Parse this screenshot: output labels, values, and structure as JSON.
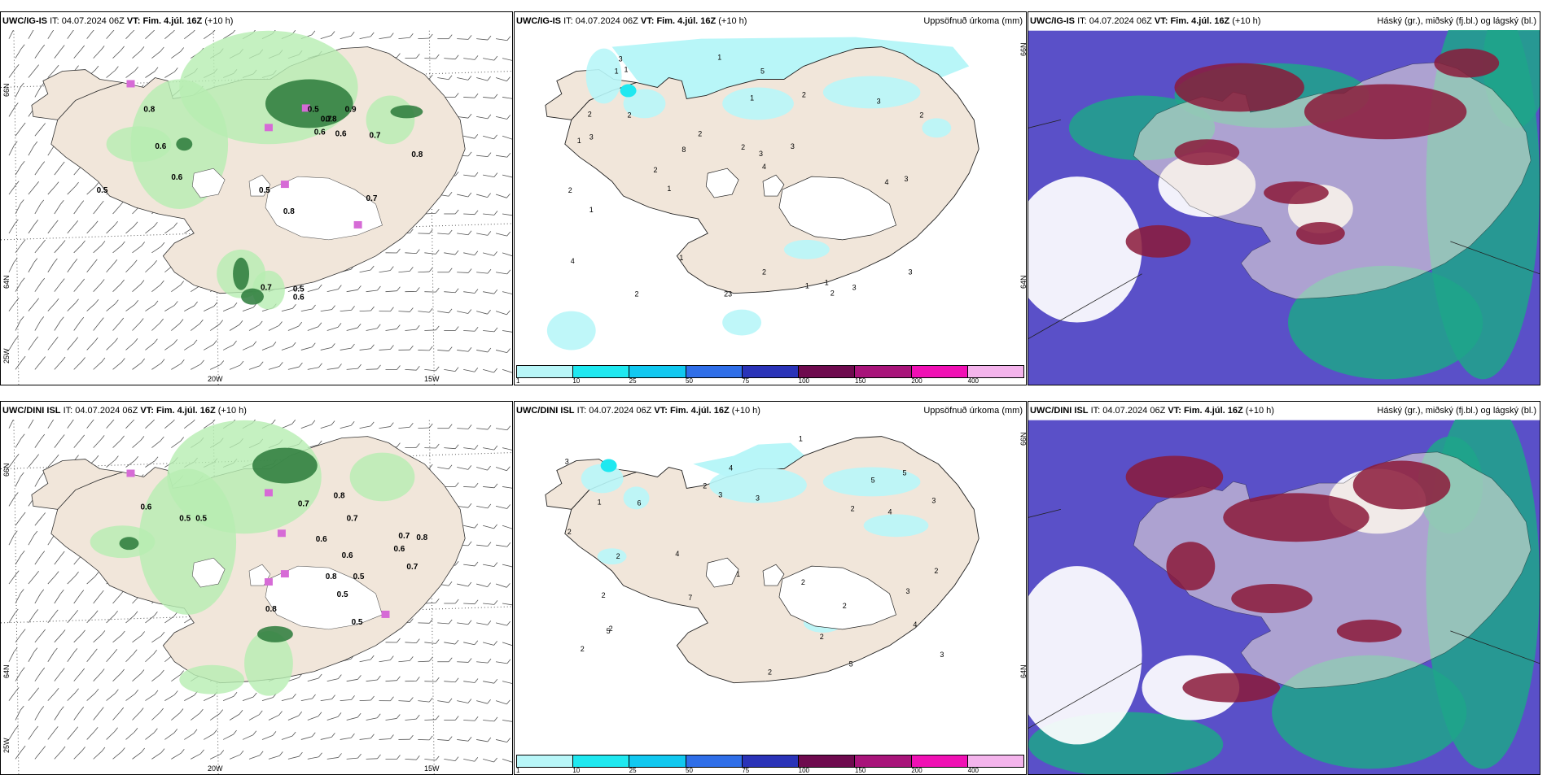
{
  "panels": [
    {
      "model": "UWC/IG-IS",
      "it_label": "IT:",
      "it": "04.07.2024 06Z",
      "vt_label": "VT:",
      "vt": "Fim. 4.júl. 16Z",
      "lead": "(+10 h)",
      "right_title": ""
    },
    {
      "model": "UWC/IG-IS",
      "it_label": "IT:",
      "it": "04.07.2024 06Z",
      "vt_label": "VT:",
      "vt": "Fim. 4.júl. 16Z",
      "lead": "(+10 h)",
      "right_title": "Uppsöfnuð úrkoma (mm)"
    },
    {
      "model": "UWC/IG-IS",
      "it_label": "IT:",
      "it": "04.07.2024 06Z",
      "vt_label": "VT:",
      "vt": "Fim. 4.júl. 16Z",
      "lead": "(+10 h)",
      "right_title": "Háský (gr.), miðský (fj.bl.) og lágský (bl.)"
    },
    {
      "model": "UWC/DINI ISL",
      "it_label": "IT:",
      "it": "04.07.2024 06Z",
      "vt_label": "VT:",
      "vt": "Fim. 4.júl. 16Z",
      "lead": "(+10 h)",
      "right_title": ""
    },
    {
      "model": "UWC/DINI ISL",
      "it_label": "IT:",
      "it": "04.07.2024 06Z",
      "vt_label": "VT:",
      "vt": "Fim. 4.júl. 16Z",
      "lead": "(+10 h)",
      "right_title": "Uppsöfnuð úrkoma (mm)"
    },
    {
      "model": "UWC/DINI ISL",
      "it_label": "IT:",
      "it": "04.07.2024 06Z",
      "vt_label": "VT:",
      "vt": "Fim. 4.júl. 16Z",
      "lead": "(+10 h)",
      "right_title": "Háský (gr.), miðský (fj.bl.) og lágský (bl.)"
    }
  ],
  "axes": {
    "lat_top": "66N",
    "lat_bottom": "64N",
    "lon_left": "25W",
    "lon_mid": "20W",
    "lon_right": "15W"
  },
  "colorbar": {
    "ticks": [
      "1",
      "10",
      "25",
      "50",
      "75",
      "100",
      "150",
      "200",
      "400"
    ],
    "colors": [
      "#b8f6f8",
      "#1fe8f0",
      "#11c8f0",
      "#2f6ee8",
      "#2a33b8",
      "#6e0a4e",
      "#a8147a",
      "#f010b4",
      "#f4b4ec"
    ]
  },
  "wind_labels": {
    "p0": [
      "0.8",
      "0.6",
      "0.6",
      "0.5",
      "0.5",
      "0.5",
      "0.7",
      "0.7",
      "0.7",
      "0.8",
      "0.9",
      "0.6",
      "0.6",
      "0.8",
      "0.5",
      "0.6",
      "0.7",
      "0.8"
    ],
    "p3": [
      "0.6",
      "0.5",
      "0.5",
      "0.7",
      "0.8",
      "0.7",
      "0.6",
      "0.6",
      "0.8",
      "0.5",
      "0.7",
      "0.6",
      "0.8",
      "0.7",
      "0.5",
      "0.5",
      "0.8"
    ]
  },
  "precip_labels": {
    "p1": [
      "2",
      "2",
      "1",
      "1",
      "2",
      "1",
      "23",
      "2",
      "2",
      "1",
      "1",
      "2",
      "4",
      "3",
      "2",
      "3",
      "2",
      "1",
      "3",
      "1",
      "2",
      "1",
      "3",
      "1",
      "4",
      "5",
      "3",
      "2",
      "4",
      "2",
      "1",
      "3",
      "3",
      "8",
      "3"
    ],
    "p4": [
      "2",
      "5",
      "2",
      "3",
      "2",
      "6",
      "2",
      "1",
      "2",
      "3",
      "5",
      "5",
      "7",
      "2",
      "4",
      "3",
      "2",
      "4",
      "1",
      "2",
      "2",
      "3",
      "2",
      "2",
      "3",
      "5",
      "2",
      "4",
      "3",
      "4",
      "1"
    ]
  },
  "colors": {
    "land": "#f1e6da",
    "wind_green": "#b6eeb2",
    "dark_green": "#2a7a3a",
    "magenta": "#d66bd6",
    "cloud_purple": "#5a50c8",
    "cloud_red": "#8b1a3a",
    "cloud_teal": "#1fa58a",
    "cyan": "#b8f6f8"
  }
}
